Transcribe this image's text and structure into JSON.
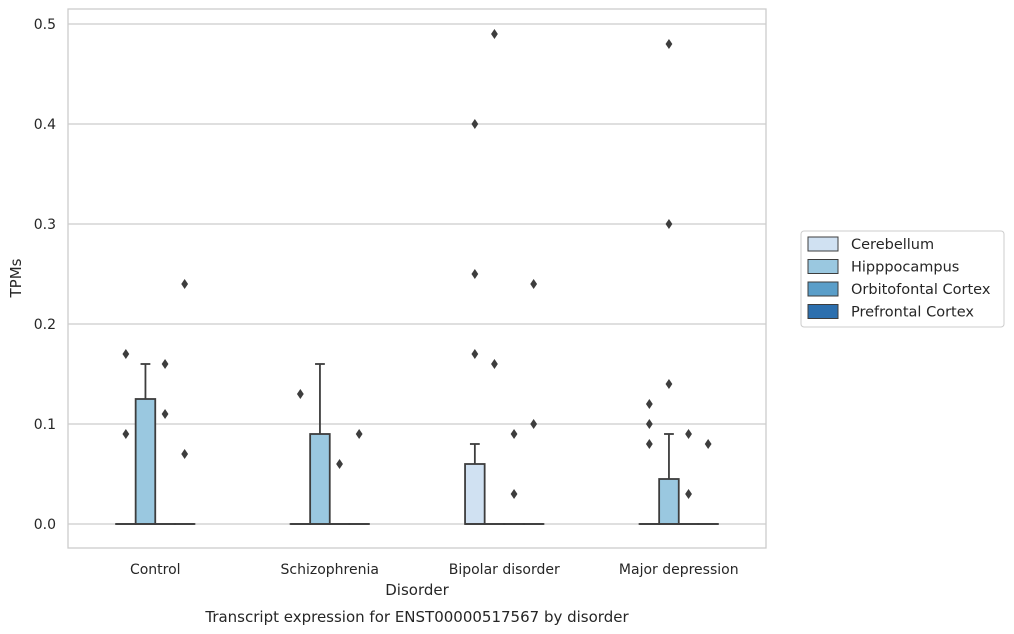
{
  "chart_data": {
    "type": "box",
    "title": "",
    "caption": "Transcript expression for ENST00000517567 by disorder",
    "xlabel": "Disorder",
    "ylabel": "TPMs",
    "categories": [
      "Control",
      "Schizophrenia",
      "Bipolar disorder",
      "Major depression"
    ],
    "ylim": [
      -0.024,
      0.515
    ],
    "yticks": [
      "0.0",
      "0.1",
      "0.2",
      "0.3",
      "0.4",
      "0.5"
    ],
    "grid": "horizontal",
    "legend_position": "right",
    "series": [
      {
        "name": "Cerebellum",
        "color": "#d0e1f2",
        "boxes": [
          {
            "q1": 0,
            "median": 0,
            "q3": 0,
            "whisker_low": 0,
            "whisker_high": 0,
            "outliers": [
              0.09,
              0.17
            ]
          },
          {
            "q1": 0,
            "median": 0,
            "q3": 0,
            "whisker_low": 0,
            "whisker_high": 0,
            "outliers": [
              0.13
            ]
          },
          {
            "q1": 0,
            "median": 0,
            "q3": 0.06,
            "whisker_low": 0,
            "whisker_high": 0.08,
            "outliers": [
              0.17,
              0.25,
              0.4
            ]
          },
          {
            "q1": 0,
            "median": 0,
            "q3": 0,
            "whisker_low": 0,
            "whisker_high": 0,
            "outliers": [
              0.08,
              0.1,
              0.12
            ]
          }
        ]
      },
      {
        "name": "Hipppocampus",
        "color": "#9ac8e0",
        "boxes": [
          {
            "q1": 0,
            "median": 0,
            "q3": 0.125,
            "whisker_low": 0,
            "whisker_high": 0.16,
            "outliers": []
          },
          {
            "q1": 0,
            "median": 0,
            "q3": 0.09,
            "whisker_low": 0,
            "whisker_high": 0.16,
            "outliers": []
          },
          {
            "q1": 0,
            "median": 0,
            "q3": 0,
            "whisker_low": 0,
            "whisker_high": 0,
            "outliers": [
              0.16,
              0.49
            ]
          },
          {
            "q1": 0,
            "median": 0,
            "q3": 0.045,
            "whisker_low": 0,
            "whisker_high": 0.09,
            "outliers": [
              0.14,
              0.3,
              0.48
            ]
          }
        ]
      },
      {
        "name": "Orbitofontal Cortex",
        "color": "#5a9ec9",
        "boxes": [
          {
            "q1": 0,
            "median": 0,
            "q3": 0,
            "whisker_low": 0,
            "whisker_high": 0,
            "outliers": [
              0.11,
              0.16
            ]
          },
          {
            "q1": 0,
            "median": 0,
            "q3": 0,
            "whisker_low": 0,
            "whisker_high": 0,
            "outliers": [
              0.06
            ]
          },
          {
            "q1": 0,
            "median": 0,
            "q3": 0,
            "whisker_low": 0,
            "whisker_high": 0,
            "outliers": [
              0.03,
              0.09
            ]
          },
          {
            "q1": 0,
            "median": 0,
            "q3": 0,
            "whisker_low": 0,
            "whisker_high": 0,
            "outliers": [
              0.03,
              0.09
            ]
          }
        ]
      },
      {
        "name": "Prefrontal Cortex",
        "color": "#2c6fae",
        "boxes": [
          {
            "q1": 0,
            "median": 0,
            "q3": 0,
            "whisker_low": 0,
            "whisker_high": 0,
            "outliers": [
              0.07,
              0.24
            ]
          },
          {
            "q1": 0,
            "median": 0,
            "q3": 0,
            "whisker_low": 0,
            "whisker_high": 0,
            "outliers": [
              0.09
            ]
          },
          {
            "q1": 0,
            "median": 0,
            "q3": 0,
            "whisker_low": 0,
            "whisker_high": 0,
            "outliers": [
              0.1,
              0.24
            ]
          },
          {
            "q1": 0,
            "median": 0,
            "q3": 0,
            "whisker_low": 0,
            "whisker_high": 0,
            "outliers": [
              0.08
            ]
          }
        ]
      }
    ]
  }
}
